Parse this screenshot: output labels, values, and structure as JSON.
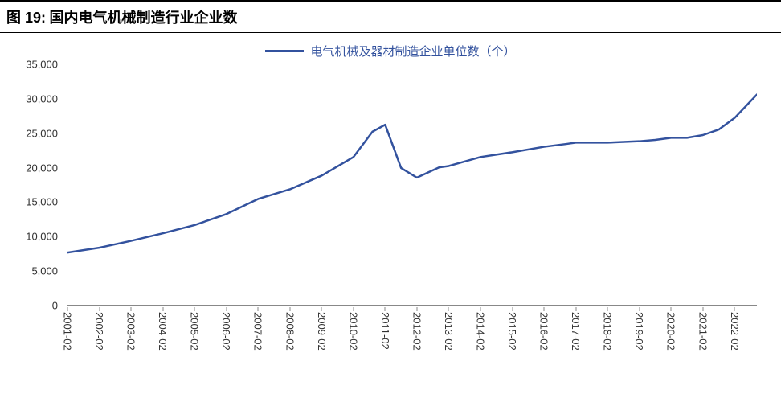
{
  "figure_label": "图 19:",
  "title": "国内电气机械制造行业企业数",
  "legend": {
    "label": "电气机械及器材制造企业单位数（个）",
    "color": "#33529e"
  },
  "chart": {
    "type": "line",
    "line_color": "#33529e",
    "line_width": 2.5,
    "background_color": "#ffffff",
    "axis_color": "#888888",
    "label_color": "#333333",
    "label_fontsize": 13,
    "title_fontsize": 18,
    "legend_fontsize": 15,
    "ylim": [
      0,
      35000
    ],
    "ytick_step": 5000,
    "yticks": [
      0,
      5000,
      10000,
      15000,
      20000,
      25000,
      30000,
      35000
    ],
    "ytick_labels": [
      "0",
      "5,000",
      "10,000",
      "15,000",
      "20,000",
      "25,000",
      "30,000",
      "35,000"
    ],
    "x_categories": [
      "2001-02",
      "2002-02",
      "2003-02",
      "2004-02",
      "2005-02",
      "2006-02",
      "2007-02",
      "2008-02",
      "2009-02",
      "2010-02",
      "2011-02",
      "2012-02",
      "2013-02",
      "2014-02",
      "2015-02",
      "2016-02",
      "2017-02",
      "2018-02",
      "2019-02",
      "2020-02",
      "2021-02",
      "2022-02"
    ],
    "series": [
      {
        "name": "电气机械及器材制造企业单位数（个）",
        "color": "#33529e",
        "values": [
          7600,
          8300,
          9300,
          10400,
          11600,
          13200,
          15400,
          16800,
          18800,
          21500,
          25200,
          26200,
          19900,
          18500,
          20000,
          20200,
          21500,
          22200,
          23000,
          23400,
          23600,
          23600,
          23800,
          24000,
          24300,
          24300,
          24700,
          25500,
          27200,
          30600
        ],
        "x_positions": [
          0,
          1,
          2,
          3,
          4,
          5,
          6,
          7,
          8,
          9,
          9.6,
          10,
          10.5,
          11,
          11.7,
          12,
          13,
          14,
          15,
          15.7,
          16,
          17,
          18,
          18.5,
          19,
          19.5,
          20,
          20.5,
          21,
          21.7
        ]
      }
    ]
  }
}
